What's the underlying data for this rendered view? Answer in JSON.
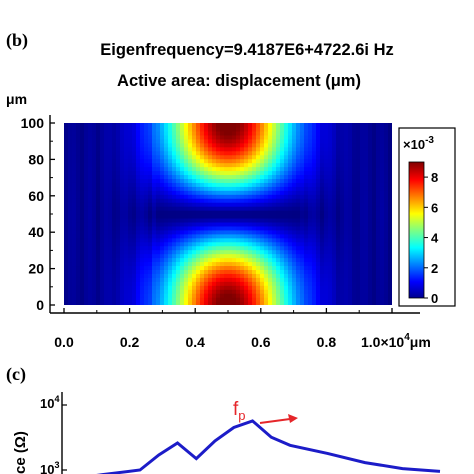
{
  "panel_b": {
    "panel_label": "(b)",
    "title": "Eigenfrequency=9.4187E6+4722.6i Hz",
    "subtitle": "Active area: displacement (μm)",
    "y_unit": "μm",
    "x_ticks": [
      "0.0",
      "0.2",
      "0.4",
      "0.6",
      "0.8"
    ],
    "x_last_tick": "1.0×10",
    "x_last_exp": "4",
    "x_unit": "μm",
    "y_ticks": [
      "0",
      "20",
      "40",
      "60",
      "80",
      "100"
    ],
    "colorbar": {
      "multiplier": "×10",
      "exponent": "-3",
      "ticks": [
        "0",
        "2",
        "4",
        "6",
        "8"
      ],
      "colormap": "jet"
    }
  },
  "panel_c": {
    "panel_label": "(c)",
    "marker_label": "f",
    "marker_sub": "p",
    "marker_color": "#e5262a",
    "curve_color": "#1c1cc8",
    "y_tick_base": "10",
    "y_tick_exps": [
      "4",
      "3"
    ],
    "ylabel_visible": "ce (Ω)"
  },
  "chart_data": [
    {
      "type": "heatmap",
      "title": "Eigenfrequency=9.4187E6+4722.6i Hz",
      "subtitle": "Active area: displacement (μm)",
      "x_range": [
        0,
        10000
      ],
      "y_range": [
        0,
        100
      ],
      "x_unit": "μm",
      "y_unit": "μm",
      "value_range": [
        0,
        0.009
      ],
      "value_scale": "×10^-3",
      "colormap": "jet",
      "description_of_field": [
        {
          "x": 5000,
          "y": 0,
          "value": 0.0085
        },
        {
          "x": 5000,
          "y": 100,
          "value": 0.0085
        },
        {
          "x": 5000,
          "y": 50,
          "value": 0.0
        },
        {
          "x": 2000,
          "y": 50,
          "value": 0.0005
        },
        {
          "x": 8000,
          "y": 50,
          "value": 0.0005
        }
      ],
      "grid": false
    },
    {
      "type": "line",
      "y_scale": "log",
      "y_ticks": [
        1000,
        10000
      ],
      "annotation": "fp",
      "series": [
        {
          "x": [
            0.0,
            0.1,
            0.2,
            0.25,
            0.3,
            0.35,
            0.4,
            0.45,
            0.5,
            0.55,
            0.6,
            0.7,
            0.8,
            0.9,
            1.0
          ],
          "values": [
            700,
            850,
            1000,
            1700,
            2600,
            1500,
            2800,
            4500,
            5700,
            3200,
            2400,
            1800,
            1300,
            1050,
            950
          ]
        }
      ]
    }
  ]
}
